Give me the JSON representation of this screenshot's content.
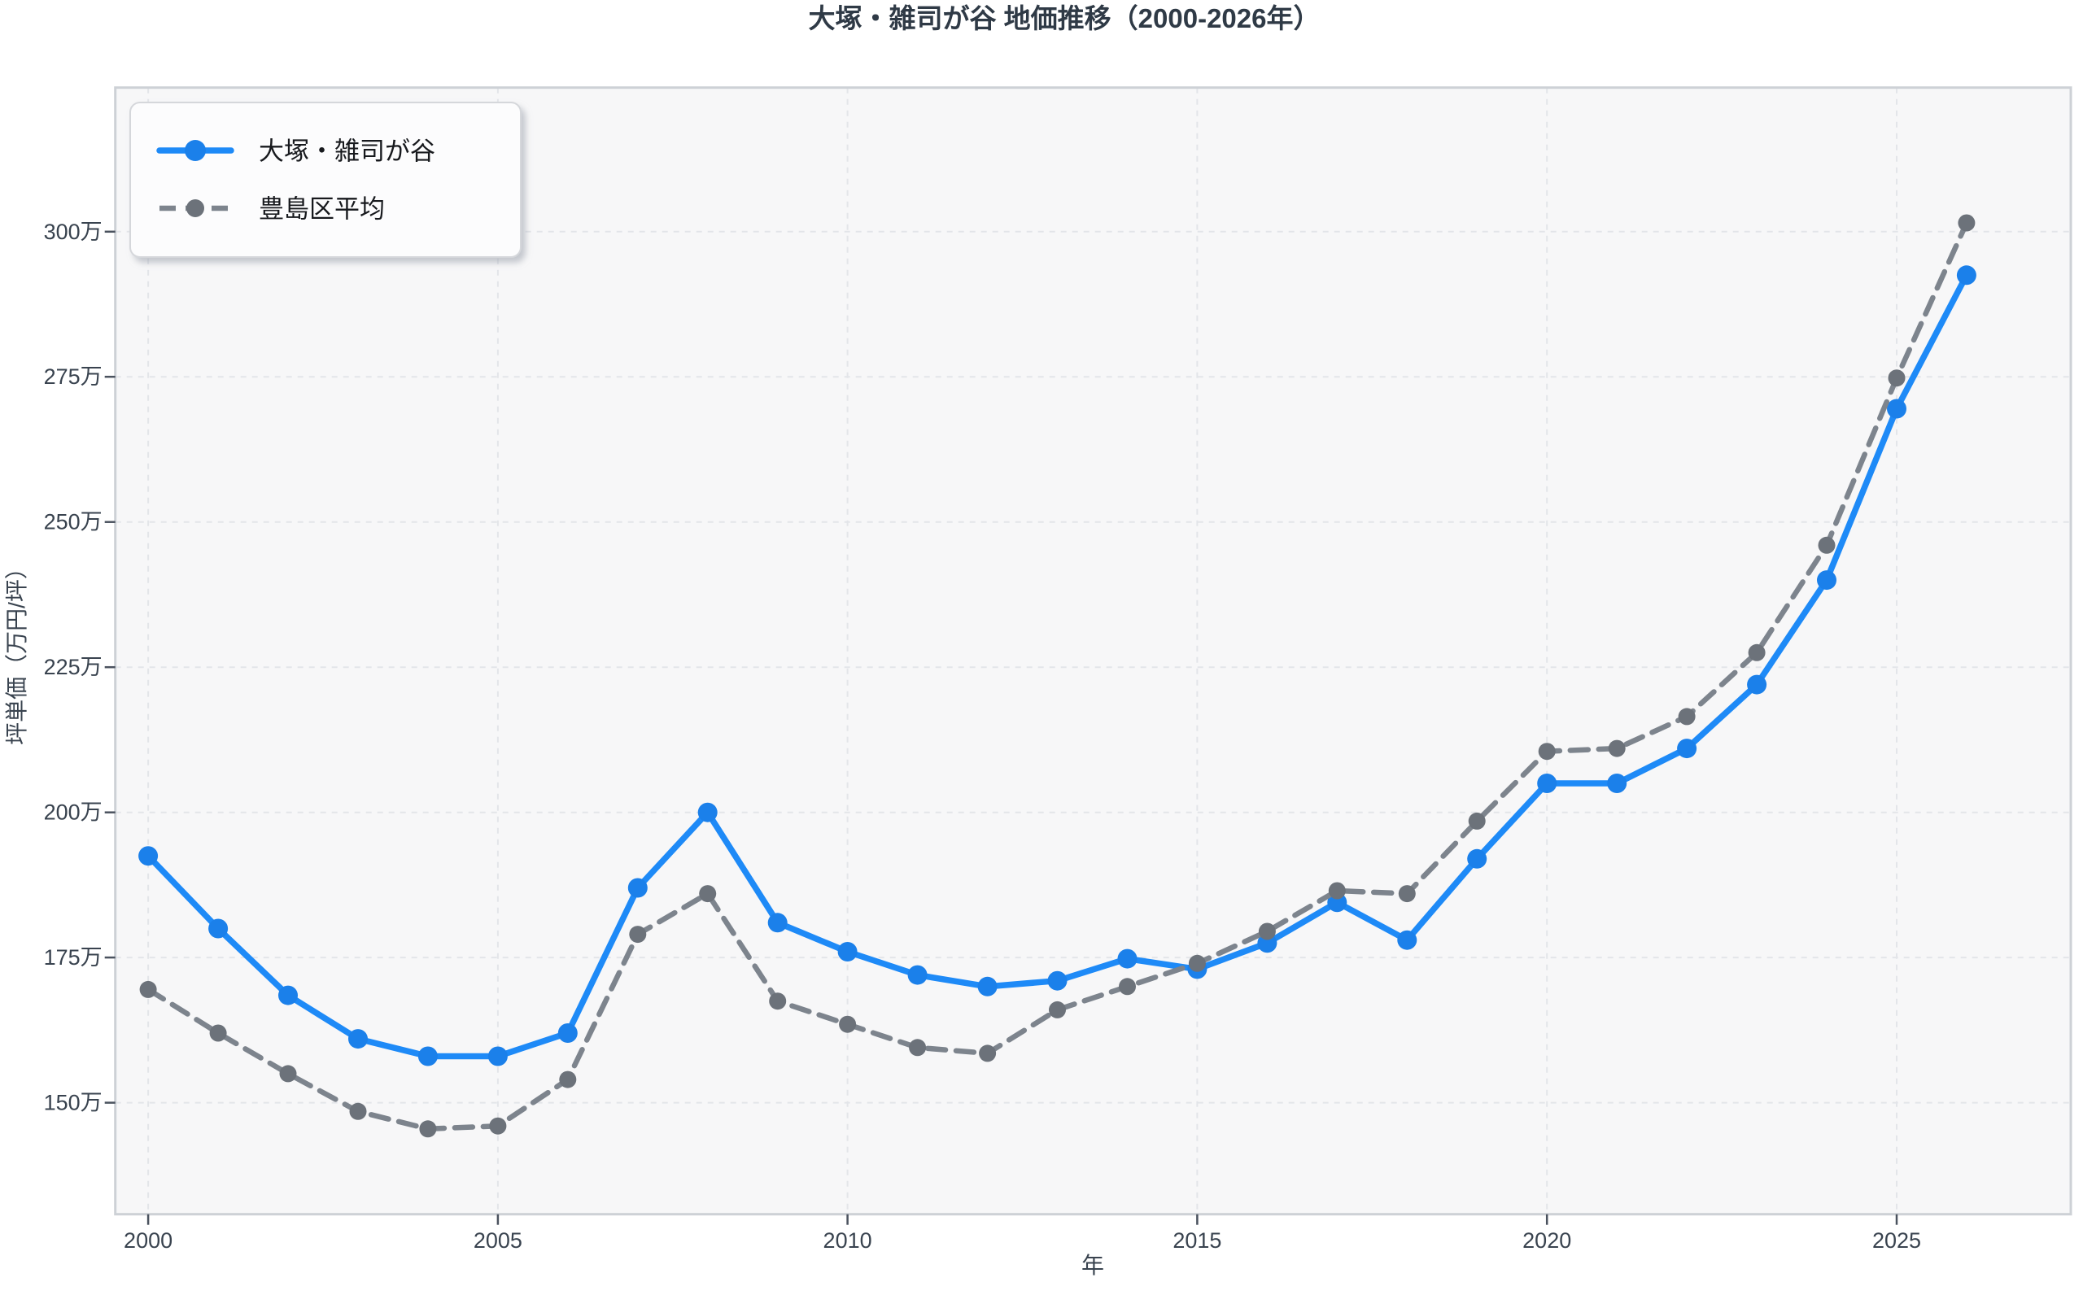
{
  "chart_data": {
    "type": "line",
    "title": "大塚・雑司が谷 地価推移（2000-2026年）",
    "xlabel": "年",
    "ylabel": "坪単価（万円/坪）",
    "unit": "万円/坪",
    "x": [
      2000,
      2001,
      2002,
      2003,
      2004,
      2005,
      2006,
      2007,
      2008,
      2009,
      2010,
      2011,
      2012,
      2013,
      2014,
      2015,
      2016,
      2017,
      2018,
      2019,
      2020,
      2021,
      2022,
      2023,
      2024,
      2025,
      2026
    ],
    "series": [
      {
        "id": "otsuka-zoshigaya",
        "name": "大塚・雑司が谷",
        "line_style": "solid",
        "color": "#1e8af7",
        "marker_color": "#1b80ea",
        "values": [
          192.5,
          180,
          168.5,
          161,
          158,
          158,
          162,
          187,
          200,
          181,
          176,
          172,
          170,
          171,
          174.8,
          173,
          177.5,
          184.5,
          178,
          192,
          205,
          205,
          211,
          222,
          240,
          269.5,
          292.5
        ]
      },
      {
        "id": "toshima-ku-average",
        "name": "豊島区平均",
        "line_style": "dashed",
        "color": "#7d848d",
        "marker_color": "#6c727a",
        "values": [
          169.5,
          162,
          155,
          148.5,
          145.5,
          146,
          154,
          179,
          186,
          167.5,
          163.5,
          159.5,
          158.5,
          166,
          170,
          174,
          179.5,
          186.5,
          186,
          198.5,
          210.5,
          211,
          216.5,
          227.5,
          246,
          274.8,
          301.5
        ]
      }
    ],
    "x_ticks": [
      {
        "value": 2000,
        "label": "2000"
      },
      {
        "value": 2005,
        "label": "2005"
      },
      {
        "value": 2010,
        "label": "2010"
      },
      {
        "value": 2015,
        "label": "2015"
      },
      {
        "value": 2020,
        "label": "2020"
      },
      {
        "value": 2025,
        "label": "2025"
      }
    ],
    "y_ticks": [
      {
        "value": 150,
        "label": "150万"
      },
      {
        "value": 175,
        "label": "175万"
      },
      {
        "value": 200,
        "label": "200万"
      },
      {
        "value": 225,
        "label": "225万"
      },
      {
        "value": 250,
        "label": "250万"
      },
      {
        "value": 275,
        "label": "275万"
      },
      {
        "value": 300,
        "label": "300万"
      }
    ],
    "xlim": [
      1999.53,
      2027.49
    ],
    "ylim": [
      130.8,
      324.8
    ],
    "grid": true,
    "legend_position": "upper left"
  }
}
